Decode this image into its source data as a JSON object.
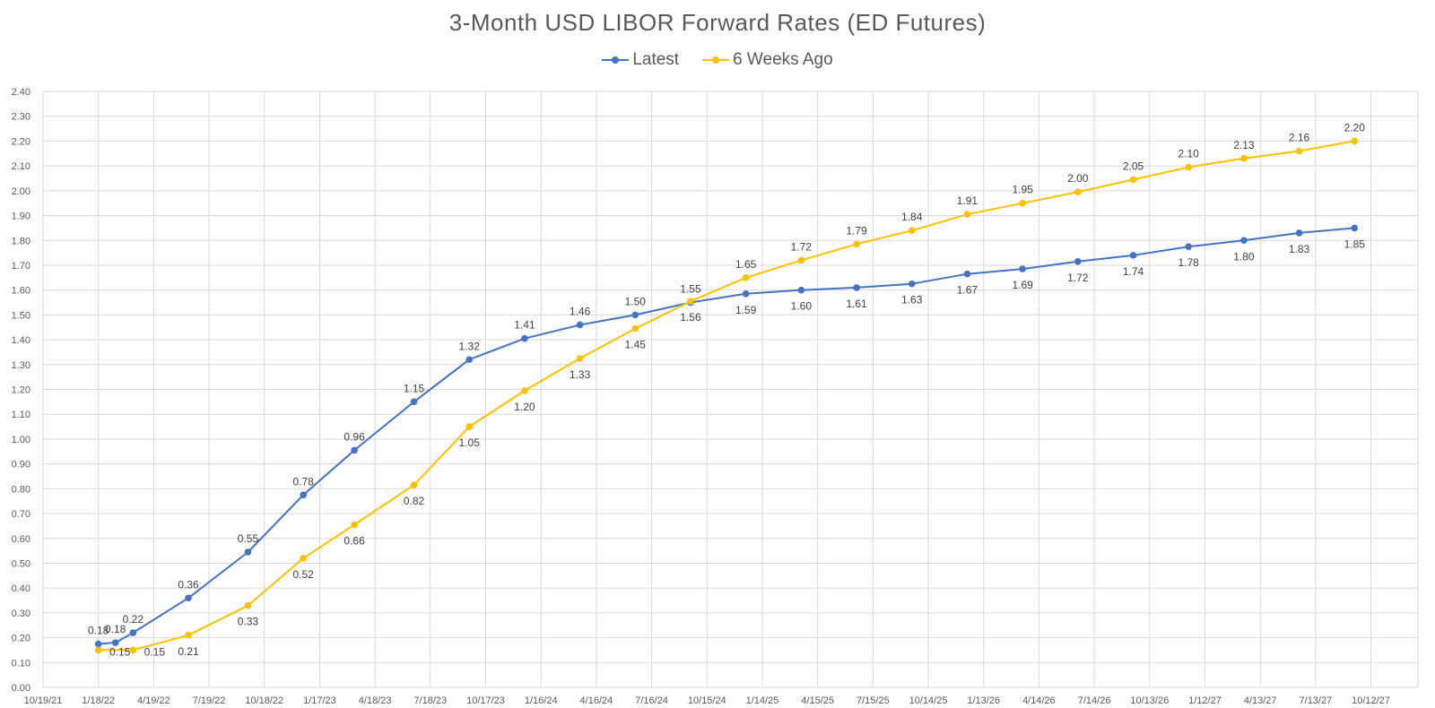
{
  "chart_data": {
    "type": "line",
    "title": "3-Month USD LIBOR Forward Rates (ED Futures)",
    "xlabel": "",
    "ylabel": "",
    "ylim": [
      0,
      2.4
    ],
    "yticks": [
      "0.00",
      "0.10",
      "0.20",
      "0.30",
      "0.40",
      "0.50",
      "0.60",
      "0.70",
      "0.80",
      "0.90",
      "1.00",
      "1.10",
      "1.20",
      "1.30",
      "1.40",
      "1.50",
      "1.60",
      "1.70",
      "1.80",
      "1.90",
      "2.00",
      "2.10",
      "2.20",
      "2.30",
      "2.40"
    ],
    "xticks": [
      "10/19/21",
      "1/18/22",
      "4/19/22",
      "7/19/22",
      "10/18/22",
      "1/17/23",
      "4/18/23",
      "7/18/23",
      "10/17/23",
      "1/16/24",
      "4/16/24",
      "7/16/24",
      "10/15/24",
      "1/14/25",
      "4/15/25",
      "7/15/25",
      "10/14/25",
      "1/13/26",
      "4/14/26",
      "7/14/26",
      "10/13/26",
      "1/12/27",
      "4/13/27",
      "7/13/27",
      "10/12/27"
    ],
    "grid": true,
    "legend_position": "top",
    "series": [
      {
        "name": "Latest",
        "color": "#4472C4",
        "x": [
          "2022-01-18",
          "2022-02-15",
          "2022-03-16",
          "2022-06-15",
          "2022-09-21",
          "2022-12-21",
          "2023-03-15",
          "2023-06-21",
          "2023-09-20",
          "2023-12-20",
          "2024-03-20",
          "2024-06-19",
          "2024-09-18",
          "2024-12-18",
          "2025-03-19",
          "2025-06-18",
          "2025-09-17",
          "2025-12-17",
          "2026-03-18",
          "2026-06-17",
          "2026-09-16",
          "2026-12-16",
          "2027-03-17",
          "2027-06-16",
          "2027-09-15"
        ],
        "values": [
          0.175,
          0.18,
          0.22,
          0.36,
          0.545,
          0.775,
          0.955,
          1.15,
          1.32,
          1.405,
          1.46,
          1.5,
          1.55,
          1.585,
          1.6,
          1.61,
          1.625,
          1.665,
          1.685,
          1.715,
          1.74,
          1.775,
          1.8,
          1.83,
          1.85
        ],
        "labels": [
          "0.18",
          "0.18",
          "0.22",
          "0.36",
          "0.55",
          "0.78",
          "0.96",
          "1.15",
          "1.32",
          "1.41",
          "1.46",
          "1.50",
          "1.55",
          "1.59",
          "1.60",
          "1.61",
          "1.63",
          "1.67",
          "1.69",
          "1.72",
          "1.74",
          "1.78",
          "1.80",
          "1.83",
          "1.85"
        ],
        "label_pos": [
          "above",
          "above",
          "above",
          "above",
          "above",
          "above",
          "above",
          "above",
          "above",
          "above",
          "above",
          "above",
          "above",
          "below",
          "below",
          "below",
          "below",
          "below",
          "below",
          "below",
          "below",
          "below",
          "below",
          "below",
          "below"
        ]
      },
      {
        "name": "6 Weeks Ago",
        "color": "#FFC000",
        "x": [
          "2022-01-18",
          "2022-03-16",
          "2022-06-15",
          "2022-09-21",
          "2022-12-21",
          "2023-03-15",
          "2023-06-21",
          "2023-09-20",
          "2023-12-20",
          "2024-03-20",
          "2024-06-19",
          "2024-09-18",
          "2024-12-18",
          "2025-03-19",
          "2025-06-18",
          "2025-09-17",
          "2025-12-17",
          "2026-03-18",
          "2026-06-17",
          "2026-09-16",
          "2026-12-16",
          "2027-03-17",
          "2027-06-16",
          "2027-09-15"
        ],
        "values": [
          0.15,
          0.15,
          0.21,
          0.33,
          0.52,
          0.655,
          0.815,
          1.05,
          1.195,
          1.325,
          1.445,
          1.555,
          1.65,
          1.72,
          1.785,
          1.84,
          1.905,
          1.95,
          1.995,
          2.045,
          2.095,
          2.13,
          2.16,
          2.2
        ],
        "labels": [
          "0.15",
          "0.15",
          "0.21",
          "0.33",
          "0.52",
          "0.66",
          "0.82",
          "1.05",
          "1.20",
          "1.33",
          "1.45",
          "1.56",
          "1.65",
          "1.72",
          "1.79",
          "1.84",
          "1.91",
          "1.95",
          "2.00",
          "2.05",
          "2.10",
          "2.13",
          "2.16",
          "2.20"
        ],
        "label_pos": [
          "below-right",
          "below-right",
          "below",
          "below",
          "below",
          "below",
          "below",
          "below",
          "below",
          "below",
          "below",
          "below",
          "above",
          "above",
          "above",
          "above",
          "above",
          "above",
          "above",
          "above",
          "above",
          "above",
          "above",
          "above"
        ]
      }
    ]
  }
}
